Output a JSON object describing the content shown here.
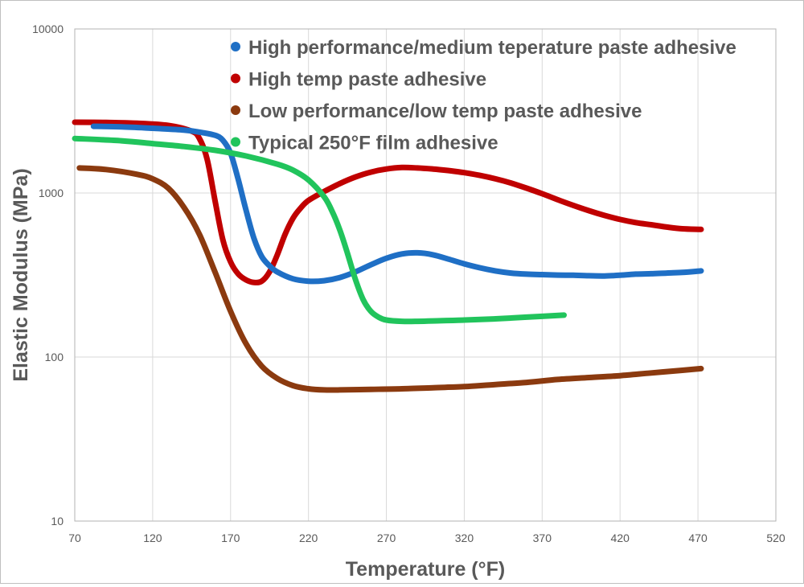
{
  "chart_data": {
    "type": "line",
    "title": "",
    "xlabel": "Temperature (°F)",
    "ylabel": "Elastic Modulus (MPa)",
    "xlim": [
      70,
      520
    ],
    "ylim": [
      10,
      10000
    ],
    "yscale": "log",
    "grid": true,
    "legend_position": "top-right",
    "x_ticks": [
      "70",
      "120",
      "170",
      "220",
      "270",
      "320",
      "370",
      "420",
      "470",
      "520"
    ],
    "y_ticks": [
      "10",
      "100",
      "1000",
      "10000"
    ],
    "series": [
      {
        "name": "High performance/medium teperature paste adhesive",
        "color": "#1f6fc5",
        "x": [
          82,
          100,
          120,
          140,
          150,
          160,
          165,
          170,
          175,
          180,
          185,
          190,
          195,
          200,
          210,
          220,
          230,
          240,
          250,
          260,
          270,
          280,
          290,
          300,
          310,
          320,
          330,
          340,
          350,
          360,
          370,
          380,
          390,
          400,
          410,
          420,
          430,
          440,
          450,
          460,
          472
        ],
        "y": [
          2550,
          2530,
          2480,
          2420,
          2350,
          2250,
          2100,
          1750,
          1200,
          780,
          530,
          410,
          360,
          330,
          300,
          290,
          292,
          305,
          330,
          365,
          400,
          425,
          432,
          420,
          395,
          370,
          350,
          335,
          325,
          320,
          318,
          316,
          315,
          313,
          312,
          315,
          320,
          322,
          325,
          328,
          335
        ]
      },
      {
        "name": "High temp paste adhesive",
        "color": "#c00000",
        "x": [
          70,
          90,
          110,
          130,
          145,
          150,
          155,
          160,
          165,
          170,
          175,
          180,
          185,
          190,
          195,
          200,
          205,
          210,
          215,
          220,
          230,
          240,
          250,
          260,
          270,
          280,
          290,
          300,
          310,
          320,
          330,
          340,
          350,
          360,
          370,
          380,
          390,
          400,
          410,
          420,
          430,
          440,
          450,
          460,
          472
        ],
        "y": [
          2700,
          2690,
          2660,
          2580,
          2380,
          2150,
          1600,
          900,
          520,
          380,
          320,
          295,
          285,
          290,
          330,
          420,
          560,
          700,
          810,
          900,
          1020,
          1140,
          1250,
          1340,
          1400,
          1430,
          1420,
          1400,
          1370,
          1330,
          1280,
          1220,
          1150,
          1070,
          990,
          910,
          840,
          780,
          730,
          690,
          660,
          640,
          620,
          605,
          600
        ]
      },
      {
        "name": "Low performance/low temp paste adhesive",
        "color": "#8b3a0f",
        "x": [
          73,
          90,
          110,
          120,
          130,
          140,
          150,
          160,
          170,
          180,
          190,
          200,
          210,
          220,
          230,
          240,
          260,
          280,
          300,
          320,
          340,
          360,
          380,
          400,
          420,
          440,
          460,
          472
        ],
        "y": [
          1420,
          1390,
          1300,
          1220,
          1070,
          820,
          560,
          330,
          190,
          120,
          88,
          74,
          67,
          64,
          63,
          63,
          63.5,
          64,
          65,
          66,
          68,
          70,
          73,
          75,
          77,
          80,
          83,
          85
        ]
      },
      {
        "name": "Typical 250°F film adhesive",
        "color": "#21c45c",
        "x": [
          70,
          100,
          120,
          140,
          160,
          180,
          200,
          210,
          220,
          230,
          235,
          240,
          245,
          250,
          255,
          260,
          265,
          270,
          280,
          290,
          300,
          320,
          340,
          360,
          384
        ],
        "y": [
          2150,
          2080,
          2000,
          1920,
          1820,
          1680,
          1500,
          1380,
          1200,
          950,
          780,
          600,
          430,
          300,
          225,
          190,
          175,
          168,
          165,
          165,
          166,
          168,
          171,
          175,
          180
        ]
      }
    ]
  }
}
